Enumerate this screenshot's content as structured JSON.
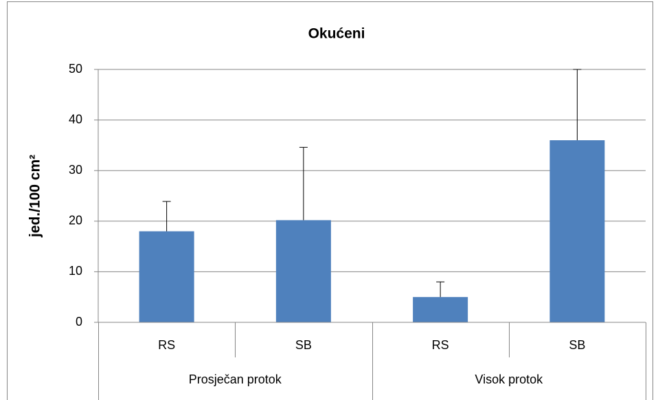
{
  "chart_data": {
    "type": "bar",
    "title": "Okućeni",
    "y_label": "jed./100 cm²",
    "groups": [
      {
        "label": "Prosječan protok",
        "categories": [
          "RS",
          "SB"
        ]
      },
      {
        "label": "Visok protok",
        "categories": [
          "RS",
          "SB"
        ]
      }
    ],
    "values": [
      18,
      20.2,
      5,
      36
    ],
    "errors": [
      5.9,
      14.4,
      3,
      14
    ],
    "color": "#4f81bd",
    "ylim": [
      0,
      50
    ],
    "yticks": [
      0,
      10,
      20,
      30,
      40,
      50
    ],
    "grid": true
  }
}
